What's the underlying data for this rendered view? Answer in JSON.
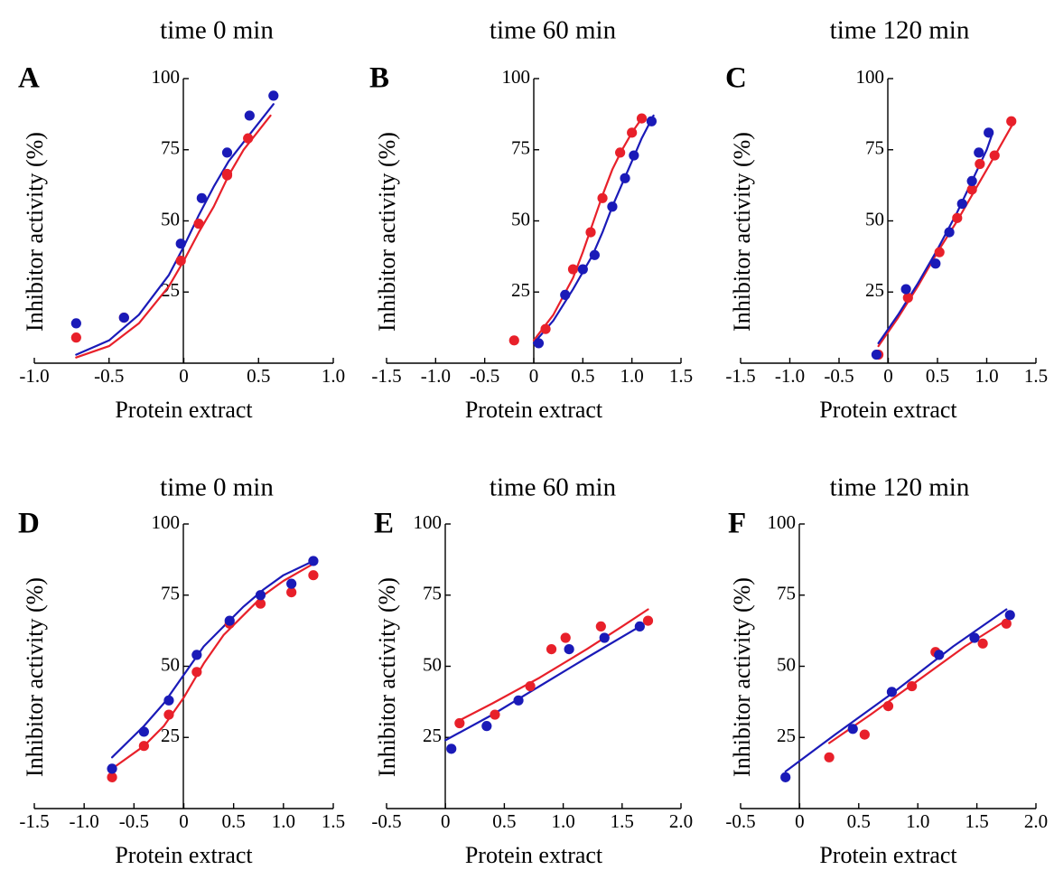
{
  "colors": {
    "red": "#e8202a",
    "blue": "#1a1ab8"
  },
  "chart_data": [
    {
      "panel": "A",
      "type": "scatter",
      "title": "time 0 min",
      "xlabel": "Protein extract",
      "ylabel": "Inhibitor activity (%)",
      "xlim": [
        -1.0,
        1.0
      ],
      "ylim": [
        0,
        100
      ],
      "xticks": [
        -1.0,
        -0.5,
        0,
        0.5,
        1.0
      ],
      "xtick_labels": [
        "-1.0",
        "-0.5",
        "0",
        "0.5",
        "1.0"
      ],
      "yticks": [
        25,
        50,
        75,
        100
      ],
      "ytick_labels": [
        "25",
        "50",
        "75",
        "100"
      ],
      "series": [
        {
          "color": "red",
          "points": [
            [
              -0.72,
              9
            ],
            [
              -0.4,
              16
            ],
            [
              -0.02,
              36
            ],
            [
              0.1,
              49
            ],
            [
              0.29,
              66
            ],
            [
              0.29,
              66.5
            ],
            [
              0.43,
              79
            ]
          ],
          "fit": [
            [
              -0.72,
              2
            ],
            [
              -0.5,
              6
            ],
            [
              -0.3,
              14
            ],
            [
              -0.1,
              27
            ],
            [
              0.0,
              36
            ],
            [
              0.1,
              46
            ],
            [
              0.2,
              55
            ],
            [
              0.3,
              66
            ],
            [
              0.4,
              75
            ],
            [
              0.58,
              87
            ]
          ]
        },
        {
          "color": "blue",
          "points": [
            [
              -0.72,
              14
            ],
            [
              -0.4,
              16
            ],
            [
              -0.02,
              42
            ],
            [
              0.12,
              58
            ],
            [
              0.29,
              74
            ],
            [
              0.44,
              87
            ],
            [
              0.6,
              94
            ]
          ],
          "fit": [
            [
              -0.72,
              3
            ],
            [
              -0.5,
              8
            ],
            [
              -0.3,
              17
            ],
            [
              -0.1,
              31
            ],
            [
              0.0,
              41
            ],
            [
              0.1,
              52
            ],
            [
              0.2,
              62
            ],
            [
              0.3,
              71
            ],
            [
              0.45,
              81
            ],
            [
              0.6,
              91
            ]
          ]
        }
      ]
    },
    {
      "panel": "B",
      "type": "scatter",
      "title": "time 60 min",
      "xlabel": "Protein extract",
      "ylabel": "Inhibitor activity (%)",
      "xlim": [
        -1.5,
        1.5
      ],
      "ylim": [
        0,
        100
      ],
      "xticks": [
        -1.5,
        -1.0,
        -0.5,
        0,
        0.5,
        1.0,
        1.5
      ],
      "xtick_labels": [
        "-1.5",
        "-1.0",
        "-0.5",
        "0",
        "0.5",
        "1.0",
        "1.5"
      ],
      "yticks": [
        25,
        50,
        75,
        100
      ],
      "ytick_labels": [
        "25",
        "50",
        "75",
        "100"
      ],
      "series": [
        {
          "color": "red",
          "points": [
            [
              -0.2,
              8
            ],
            [
              0.12,
              12
            ],
            [
              0.4,
              33
            ],
            [
              0.58,
              46
            ],
            [
              0.7,
              58
            ],
            [
              0.88,
              74
            ],
            [
              1.0,
              81
            ],
            [
              1.1,
              86
            ]
          ],
          "fit": [
            [
              0.0,
              8
            ],
            [
              0.2,
              17
            ],
            [
              0.4,
              30
            ],
            [
              0.5,
              39
            ],
            [
              0.6,
              49
            ],
            [
              0.7,
              59
            ],
            [
              0.8,
              68
            ],
            [
              0.9,
              75
            ],
            [
              1.0,
              81
            ],
            [
              1.12,
              87
            ]
          ]
        },
        {
          "color": "blue",
          "points": [
            [
              0.05,
              7
            ],
            [
              0.32,
              24
            ],
            [
              0.5,
              33
            ],
            [
              0.62,
              38
            ],
            [
              0.8,
              55
            ],
            [
              0.93,
              65
            ],
            [
              1.02,
              73
            ],
            [
              1.2,
              85
            ]
          ],
          "fit": [
            [
              0.0,
              7
            ],
            [
              0.2,
              15
            ],
            [
              0.4,
              26
            ],
            [
              0.5,
              32
            ],
            [
              0.6,
              38
            ],
            [
              0.7,
              46
            ],
            [
              0.8,
              55
            ],
            [
              0.9,
              63
            ],
            [
              1.0,
              71
            ],
            [
              1.1,
              79
            ],
            [
              1.22,
              87
            ]
          ]
        }
      ]
    },
    {
      "panel": "C",
      "type": "scatter",
      "title": "time 120 min",
      "xlabel": "Protein extract",
      "ylabel": "Inhibitor activity (%)",
      "xlim": [
        -1.5,
        1.5
      ],
      "ylim": [
        0,
        100
      ],
      "xticks": [
        -1.5,
        -1.0,
        -0.5,
        0,
        0.5,
        1.0,
        1.5
      ],
      "xtick_labels": [
        "-1.5",
        "-1.0",
        "-0.5",
        "0",
        "0.5",
        "1.0",
        "1.5"
      ],
      "yticks": [
        25,
        50,
        75,
        100
      ],
      "ytick_labels": [
        "25",
        "50",
        "75",
        "100"
      ],
      "series": [
        {
          "color": "red",
          "points": [
            [
              -0.1,
              3
            ],
            [
              0.2,
              23
            ],
            [
              0.52,
              39
            ],
            [
              0.7,
              51
            ],
            [
              0.85,
              61
            ],
            [
              0.93,
              70
            ],
            [
              1.08,
              73
            ],
            [
              1.25,
              85
            ]
          ],
          "fit": [
            [
              -0.1,
              6
            ],
            [
              0.1,
              16
            ],
            [
              0.3,
              27
            ],
            [
              0.5,
              39
            ],
            [
              0.7,
              50
            ],
            [
              0.9,
              62
            ],
            [
              1.1,
              74
            ],
            [
              1.28,
              85
            ]
          ]
        },
        {
          "color": "blue",
          "points": [
            [
              -0.12,
              3
            ],
            [
              0.18,
              26
            ],
            [
              0.48,
              35
            ],
            [
              0.62,
              46
            ],
            [
              0.75,
              56
            ],
            [
              0.85,
              64
            ],
            [
              0.92,
              74
            ],
            [
              1.02,
              81
            ]
          ],
          "fit": [
            [
              -0.1,
              7
            ],
            [
              0.1,
              17
            ],
            [
              0.3,
              28
            ],
            [
              0.5,
              40
            ],
            [
              0.7,
              53
            ],
            [
              0.85,
              64
            ],
            [
              1.0,
              75
            ],
            [
              1.05,
              80
            ]
          ]
        }
      ]
    },
    {
      "panel": "D",
      "type": "scatter",
      "title": "time 0 min",
      "xlabel": "Protein extract",
      "ylabel": "Inhibitor activity (%)",
      "xlim": [
        -1.5,
        1.5
      ],
      "ylim": [
        0,
        100
      ],
      "xticks": [
        -1.5,
        -1.0,
        -0.5,
        0,
        0.5,
        1.0,
        1.5
      ],
      "xtick_labels": [
        "-1.5",
        "-1.0",
        "-0.5",
        "0",
        "0.5",
        "1.0",
        "1.5"
      ],
      "yticks": [
        25,
        50,
        75,
        100
      ],
      "ytick_labels": [
        "25",
        "50",
        "75",
        "100"
      ],
      "series": [
        {
          "color": "red",
          "points": [
            [
              -0.72,
              11
            ],
            [
              -0.4,
              22
            ],
            [
              -0.15,
              33
            ],
            [
              0.13,
              48
            ],
            [
              0.46,
              65
            ],
            [
              0.77,
              72
            ],
            [
              1.08,
              76
            ],
            [
              1.3,
              82
            ]
          ],
          "fit": [
            [
              -0.72,
              14
            ],
            [
              -0.4,
              22
            ],
            [
              -0.2,
              29
            ],
            [
              0.0,
              39
            ],
            [
              0.2,
              51
            ],
            [
              0.4,
              61
            ],
            [
              0.6,
              68
            ],
            [
              0.8,
              75
            ],
            [
              1.0,
              80
            ],
            [
              1.3,
              86
            ]
          ]
        },
        {
          "color": "blue",
          "points": [
            [
              -0.72,
              14
            ],
            [
              -0.4,
              27
            ],
            [
              -0.15,
              38
            ],
            [
              0.13,
              54
            ],
            [
              0.46,
              66
            ],
            [
              0.77,
              75
            ],
            [
              1.08,
              79
            ],
            [
              1.3,
              87
            ]
          ],
          "fit": [
            [
              -0.72,
              18
            ],
            [
              -0.4,
              29
            ],
            [
              -0.2,
              37
            ],
            [
              0.0,
              47
            ],
            [
              0.2,
              57
            ],
            [
              0.4,
              64
            ],
            [
              0.6,
              71
            ],
            [
              0.8,
              77
            ],
            [
              1.0,
              82
            ],
            [
              1.3,
              87
            ]
          ]
        }
      ]
    },
    {
      "panel": "E",
      "type": "scatter",
      "title": "time 60 min",
      "xlabel": "Protein extract",
      "ylabel": "Inhibitor activity (%)",
      "xlim": [
        -0.5,
        2.0
      ],
      "ylim": [
        0,
        100
      ],
      "xticks": [
        -0.5,
        0,
        0.5,
        1.0,
        1.5,
        2.0
      ],
      "xtick_labels": [
        "-0.5",
        "0",
        "0.5",
        "1.0",
        "1.5",
        "2.0"
      ],
      "yticks": [
        25,
        50,
        75,
        100
      ],
      "ytick_labels": [
        "25",
        "50",
        "75",
        "100"
      ],
      "series": [
        {
          "color": "red",
          "points": [
            [
              0.12,
              30
            ],
            [
              0.42,
              33
            ],
            [
              0.72,
              43
            ],
            [
              0.9,
              56
            ],
            [
              1.02,
              60
            ],
            [
              1.32,
              64
            ],
            [
              1.72,
              66
            ]
          ],
          "fit": [
            [
              0.12,
              31
            ],
            [
              0.4,
              37
            ],
            [
              0.8,
              46
            ],
            [
              1.2,
              56
            ],
            [
              1.5,
              64
            ],
            [
              1.72,
              70
            ]
          ]
        },
        {
          "color": "blue",
          "points": [
            [
              0.05,
              21
            ],
            [
              0.35,
              29
            ],
            [
              0.62,
              38
            ],
            [
              1.05,
              56
            ],
            [
              1.35,
              60
            ],
            [
              1.65,
              64
            ]
          ],
          "fit": [
            [
              0.0,
              24
            ],
            [
              0.4,
              33
            ],
            [
              0.8,
              43
            ],
            [
              1.2,
              53
            ],
            [
              1.65,
              64
            ]
          ]
        }
      ]
    },
    {
      "panel": "F",
      "type": "scatter",
      "title": "time 120 min",
      "xlabel": "Protein extract",
      "ylabel": "Inhibitor activity (%)",
      "xlim": [
        -0.5,
        2.0
      ],
      "ylim": [
        0,
        100
      ],
      "xticks": [
        -0.5,
        0,
        0.5,
        1.0,
        1.5,
        2.0
      ],
      "xtick_labels": [
        "-0.5",
        "0",
        "0.5",
        "1.0",
        "1.5",
        "2.0"
      ],
      "yticks": [
        25,
        50,
        75,
        100
      ],
      "ytick_labels": [
        "25",
        "50",
        "75",
        "100"
      ],
      "series": [
        {
          "color": "red",
          "points": [
            [
              0.25,
              18
            ],
            [
              0.55,
              26
            ],
            [
              0.75,
              36
            ],
            [
              0.95,
              43
            ],
            [
              1.15,
              55
            ],
            [
              1.55,
              58
            ],
            [
              1.75,
              65
            ]
          ],
          "fit": [
            [
              0.25,
              23
            ],
            [
              0.6,
              33
            ],
            [
              1.0,
              45
            ],
            [
              1.4,
              57
            ],
            [
              1.78,
              67
            ]
          ]
        },
        {
          "color": "blue",
          "points": [
            [
              -0.12,
              11
            ],
            [
              0.45,
              28
            ],
            [
              0.78,
              41
            ],
            [
              1.18,
              54
            ],
            [
              1.48,
              60
            ],
            [
              1.78,
              68
            ]
          ],
          "fit": [
            [
              -0.12,
              13
            ],
            [
              0.3,
              26
            ],
            [
              0.8,
              41
            ],
            [
              1.3,
              57
            ],
            [
              1.75,
              70
            ]
          ]
        }
      ]
    }
  ]
}
